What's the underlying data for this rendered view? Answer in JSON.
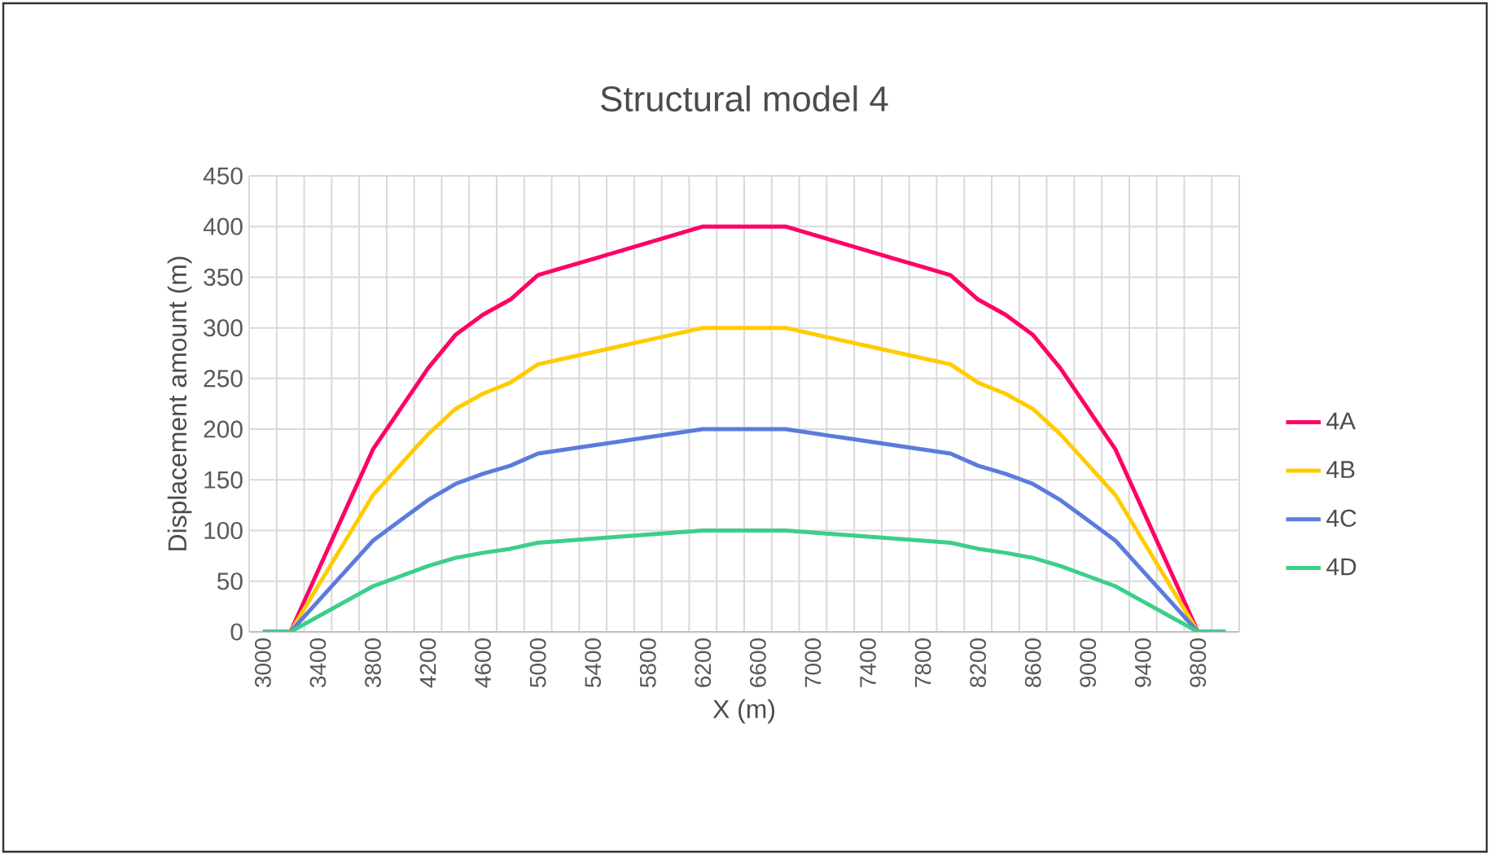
{
  "chart_data": {
    "type": "line",
    "title": "Structural model 4",
    "xlabel": "X (m)",
    "ylabel": "Displacement amount (m)",
    "categories": [
      "3000",
      null,
      "3400",
      null,
      "3800",
      null,
      "4200",
      null,
      "4600",
      null,
      "5000",
      null,
      "5400",
      null,
      "5800",
      null,
      "6200",
      null,
      "6600",
      null,
      "7000",
      null,
      "7400",
      null,
      "7800",
      null,
      "8200",
      null,
      "8600",
      null,
      "9000",
      null,
      "9400",
      null,
      "9800",
      null
    ],
    "series": [
      {
        "name": "4A",
        "color": "#ff0066",
        "values": [
          0,
          0,
          60,
          120,
          180,
          220,
          260,
          293,
          313,
          328,
          352,
          360,
          368,
          376,
          384,
          392,
          400,
          400,
          400,
          400,
          392,
          384,
          376,
          368,
          360,
          352,
          328,
          313,
          293,
          260,
          220,
          180,
          120,
          60,
          0,
          0
        ]
      },
      {
        "name": "4B",
        "color": "#ffcc00",
        "values": [
          0,
          0,
          45,
          90,
          135,
          165,
          195,
          220,
          235,
          246,
          264,
          270,
          276,
          282,
          288,
          294,
          300,
          300,
          300,
          300,
          294,
          288,
          282,
          276,
          270,
          264,
          246,
          235,
          220,
          195,
          165,
          135,
          90,
          45,
          0,
          0
        ]
      },
      {
        "name": "4C",
        "color": "#5b7bde",
        "values": [
          0,
          0,
          30,
          60,
          90,
          110,
          130,
          146,
          156,
          164,
          176,
          180,
          184,
          188,
          192,
          196,
          200,
          200,
          200,
          200,
          196,
          192,
          188,
          184,
          180,
          176,
          164,
          156,
          146,
          130,
          110,
          90,
          60,
          30,
          0,
          0
        ]
      },
      {
        "name": "4D",
        "color": "#3ccf8a",
        "values": [
          0,
          0,
          15,
          30,
          45,
          55,
          65,
          73,
          78,
          82,
          88,
          90,
          92,
          94,
          96,
          98,
          100,
          100,
          100,
          100,
          98,
          96,
          94,
          92,
          90,
          88,
          82,
          78,
          73,
          65,
          55,
          45,
          30,
          15,
          0,
          0
        ]
      }
    ],
    "ylim": [
      0,
      450
    ],
    "yticks": [
      0,
      50,
      100,
      150,
      200,
      250,
      300,
      350,
      400,
      450
    ],
    "grid": true,
    "legend": "right"
  }
}
